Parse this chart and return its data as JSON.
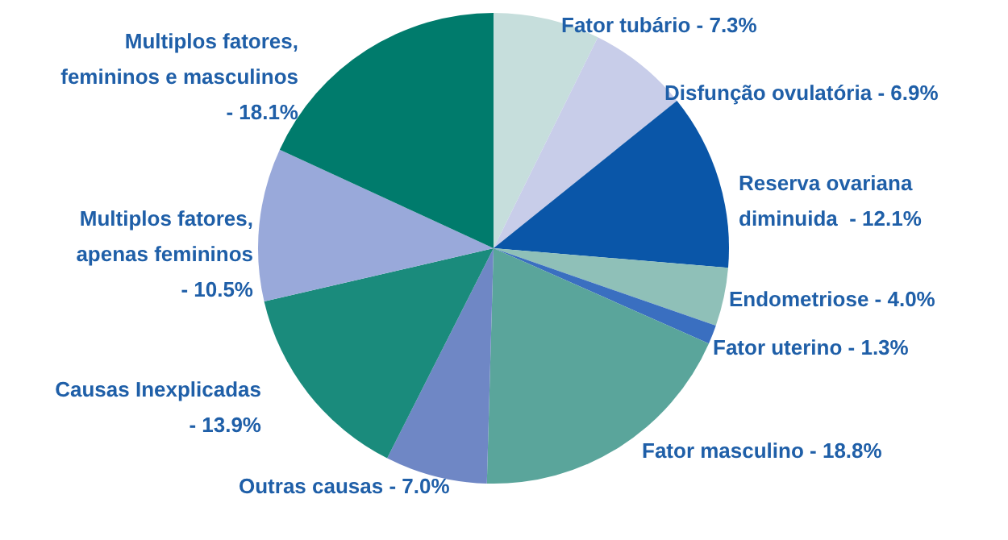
{
  "chart_data": {
    "type": "pie",
    "categories": [
      "Fator tubário -",
      "Disfunção ovulatória -",
      "Reserva ovariana diminuida  -",
      "Endometriose -",
      "Fator uterino -",
      "Fator masculino -",
      "Outras causas -",
      "Causas Inexplicadas -",
      "Multiplos fatores, apenas femininos -",
      "Multiplos fatores, femininos e masculinos -"
    ],
    "values": [
      7.3,
      6.9,
      12.1,
      4.0,
      1.3,
      18.8,
      7.0,
      13.9,
      10.5,
      18.1
    ],
    "value_labels": [
      "7.3%",
      "6.9%",
      "12.1%",
      "4.0%",
      "1.3%",
      "18.8%",
      "7.0%",
      "13.9%",
      "10.5%",
      "18.1%"
    ],
    "colors": [
      "#c6dedc",
      "#c8cde9",
      "#0a56a8",
      "#8fc0b8",
      "#3a6fc0",
      "#5aa59b",
      "#6f87c5",
      "#1a8b7c",
      "#99a9da",
      "#007b6c"
    ],
    "legend": false
  }
}
